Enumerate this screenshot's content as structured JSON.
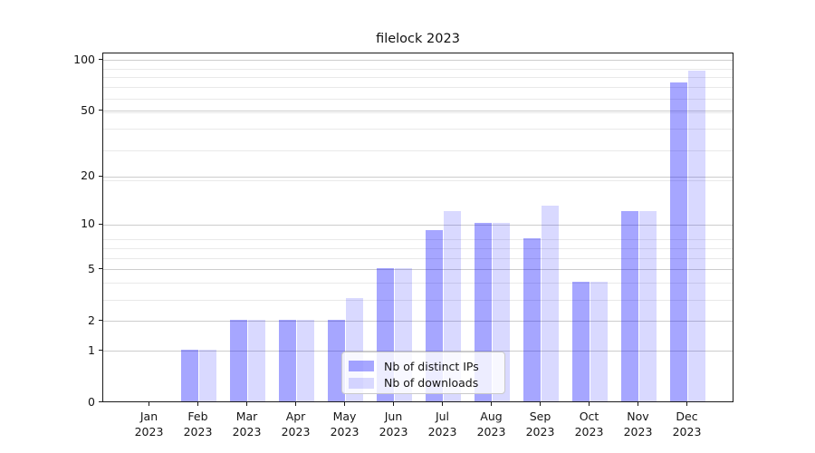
{
  "title": "filelock 2023",
  "chart_data": {
    "type": "bar",
    "title": "filelock 2023",
    "categories": [
      "Jan 2023",
      "Feb 2023",
      "Mar 2023",
      "Apr 2023",
      "May 2023",
      "Jun 2023",
      "Jul 2023",
      "Aug 2023",
      "Sep 2023",
      "Oct 2023",
      "Nov 2023",
      "Dec 2023"
    ],
    "series": [
      {
        "name": "Nb of distinct IPs",
        "color": "rgba(0,0,255,0.35)",
        "values": [
          0,
          1,
          2,
          2,
          2,
          5,
          9,
          10,
          8,
          4,
          12,
          72
        ]
      },
      {
        "name": "Nb of downloads",
        "color": "rgba(0,0,255,0.15)",
        "values": [
          0,
          1,
          2,
          2,
          3,
          5,
          12,
          10,
          13,
          4,
          12,
          85
        ]
      }
    ],
    "xlabel": "",
    "ylabel": "",
    "yscale": "log10(value+1)",
    "yticks": [
      0,
      1,
      2,
      5,
      10,
      20,
      50,
      100
    ],
    "ytick_labels": [
      "0",
      "1",
      "2",
      "5",
      "10",
      "20",
      "50",
      "100"
    ],
    "minor_gridlines_at_values": [
      3,
      4,
      6,
      7,
      8,
      19,
      29,
      39,
      49,
      59,
      69,
      79,
      89
    ],
    "ylim": [
      0,
      111
    ],
    "grid": true,
    "legend_position": "lower center",
    "frame": "full-box"
  },
  "legend": {
    "items": [
      {
        "label": "Nb of distinct IPs",
        "color": "rgba(0,0,255,0.35)"
      },
      {
        "label": "Nb of downloads",
        "color": "rgba(0,0,255,0.15)"
      }
    ]
  },
  "colors": {
    "bar_dark": "#a6a6ff",
    "bar_light": "#d9d9ff",
    "grid_major": "#cdcdcd",
    "grid_minor": "#e9e9e9",
    "spine": "#1a1a1a",
    "background": "#ffffff"
  }
}
